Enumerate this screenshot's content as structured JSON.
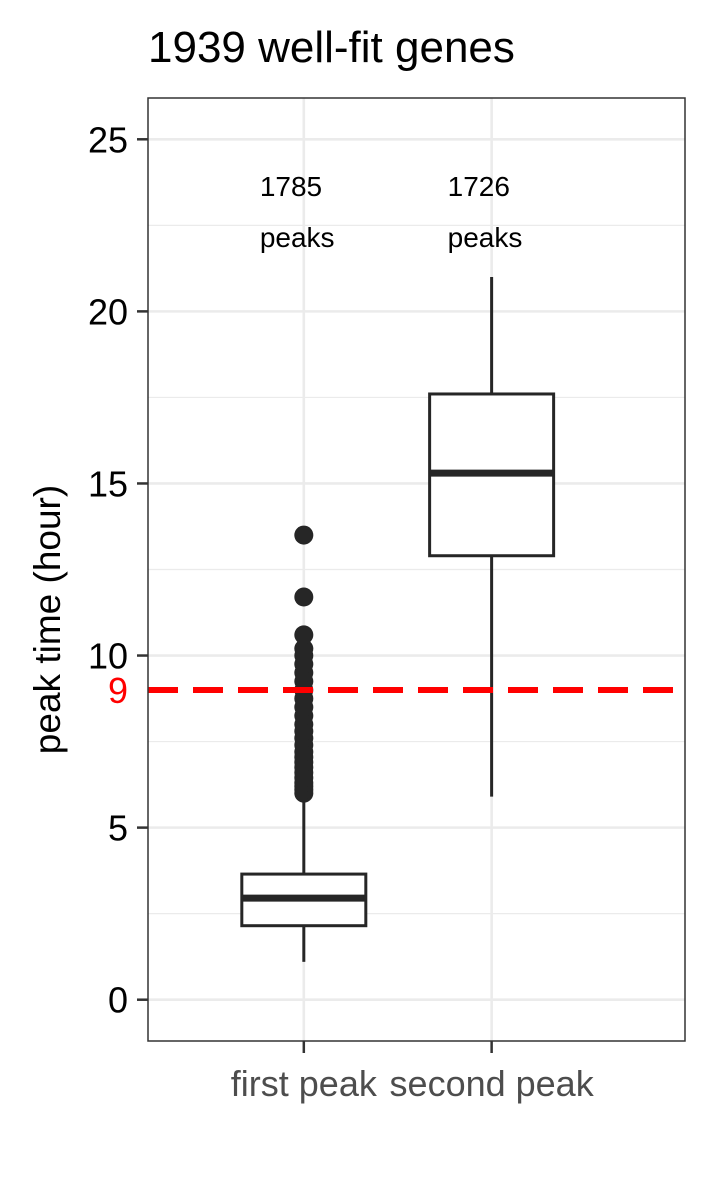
{
  "chart_data": {
    "type": "box",
    "title": "1939 well-fit genes",
    "ylabel": "peak time (hour)",
    "xlabel": "",
    "ylim": [
      -1.2,
      26.2
    ],
    "yticks": [
      0,
      5,
      10,
      15,
      20,
      25
    ],
    "y_tick_labels": [
      "0",
      "5",
      "10",
      "15",
      "20",
      "25"
    ],
    "grid": true,
    "categories": [
      "first peak",
      "second peak"
    ],
    "boxes": [
      {
        "category": "first peak",
        "whisker_low": 1.1,
        "q1": 2.15,
        "median": 2.95,
        "q3": 3.65,
        "whisker_high": 5.9,
        "outliers": [
          6.0,
          6.1,
          6.2,
          6.3,
          6.45,
          6.6,
          6.75,
          6.9,
          7.05,
          7.2,
          7.4,
          7.6,
          7.8,
          8.0,
          8.25,
          8.5,
          8.75,
          9.0,
          9.25,
          9.5,
          9.75,
          10.0,
          10.2,
          10.6,
          11.7,
          13.5
        ],
        "annotation": [
          "1785",
          "peaks"
        ]
      },
      {
        "category": "second peak",
        "whisker_low": 5.9,
        "q1": 12.9,
        "median": 15.3,
        "q3": 17.6,
        "whisker_high": 21.0,
        "outliers": [],
        "annotation": [
          "1726",
          "peaks"
        ]
      }
    ],
    "reference_line": {
      "y": 9,
      "label": "9",
      "color": "#ff0000",
      "style": "dashed"
    },
    "colors": {
      "box": "#262626",
      "outlier": "#262626",
      "panel_border": "#333333",
      "grid": "#ebebeb"
    }
  }
}
